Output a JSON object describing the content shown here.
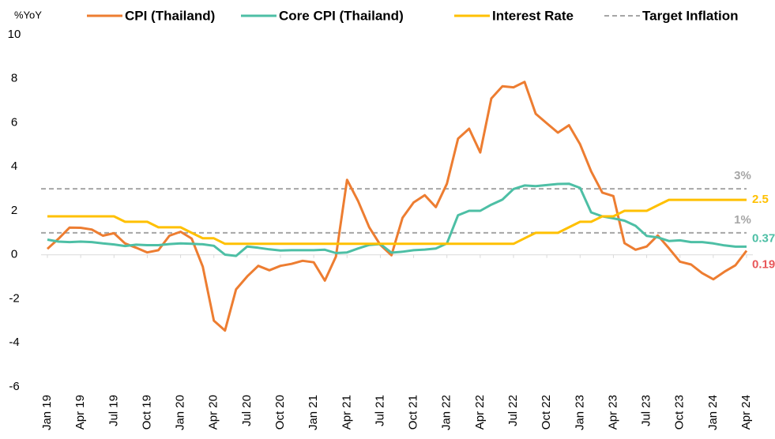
{
  "chart_data": {
    "type": "line",
    "y_label": "%YoY",
    "categories": [
      "Jan 19",
      null,
      null,
      "Apr 19",
      null,
      null,
      "Jul 19",
      null,
      null,
      "Oct 19",
      null,
      null,
      "Jan 20",
      null,
      null,
      "Apr 20",
      null,
      null,
      "Jul 20",
      null,
      null,
      "Oct 20",
      null,
      null,
      "Jan 21",
      null,
      null,
      "Apr 21",
      null,
      null,
      "Jul 21",
      null,
      null,
      "Oct 21",
      null,
      null,
      "Jan 22",
      null,
      null,
      "Apr 22",
      null,
      null,
      "Jul 22",
      null,
      null,
      "Oct 22",
      null,
      null,
      "Jan 23",
      null,
      null,
      "Apr 23",
      null,
      null,
      "Jul 23",
      null,
      null,
      "Oct 23",
      null,
      null,
      "Jan 24",
      null,
      null,
      "Apr 24"
    ],
    "series": [
      {
        "name": "CPI (Thailand)",
        "color": "#ed7d31",
        "label_color": "#e8575a",
        "values": [
          0.27,
          0.73,
          1.24,
          1.23,
          1.15,
          0.87,
          0.98,
          0.52,
          0.32,
          0.11,
          0.21,
          0.87,
          1.05,
          0.74,
          -0.54,
          -2.99,
          -3.44,
          -1.57,
          -0.98,
          -0.5,
          -0.7,
          -0.5,
          -0.41,
          -0.27,
          -0.34,
          -1.17,
          -0.08,
          3.41,
          2.44,
          1.25,
          0.45,
          -0.02,
          1.68,
          2.38,
          2.71,
          2.17,
          3.23,
          5.28,
          5.73,
          4.65,
          7.1,
          7.66,
          7.61,
          7.86,
          6.41,
          5.98,
          5.55,
          5.89,
          5.02,
          3.79,
          2.83,
          2.67,
          0.53,
          0.23,
          0.38,
          0.88,
          0.3,
          -0.31,
          -0.44,
          -0.83,
          -1.11,
          -0.77,
          -0.47,
          0.19
        ]
      },
      {
        "name": "Core CPI (Thailand)",
        "color": "#4dbfa5",
        "label_color": "#4dbfa5",
        "values": [
          0.69,
          0.6,
          0.58,
          0.6,
          0.58,
          0.52,
          0.47,
          0.4,
          0.46,
          0.44,
          0.44,
          0.49,
          0.52,
          0.5,
          0.48,
          0.41,
          0.01,
          -0.05,
          0.38,
          0.32,
          0.25,
          0.2,
          0.21,
          0.21,
          0.21,
          0.23,
          0.08,
          0.11,
          0.29,
          0.45,
          0.49,
          0.1,
          0.14,
          0.21,
          0.24,
          0.29,
          0.52,
          1.8,
          2.0,
          2.0,
          2.28,
          2.51,
          2.99,
          3.15,
          3.12,
          3.17,
          3.22,
          3.23,
          3.04,
          1.93,
          1.75,
          1.66,
          1.55,
          1.32,
          0.86,
          0.79,
          0.63,
          0.66,
          0.58,
          0.58,
          0.52,
          0.43,
          0.37,
          0.37
        ]
      },
      {
        "name": "Interest Rate",
        "color": "#ffc000",
        "label_color": "#ffc000",
        "values": [
          1.75,
          1.75,
          1.75,
          1.75,
          1.75,
          1.75,
          1.75,
          1.5,
          1.5,
          1.5,
          1.25,
          1.25,
          1.25,
          1.0,
          0.75,
          0.75,
          0.5,
          0.5,
          0.5,
          0.5,
          0.5,
          0.5,
          0.5,
          0.5,
          0.5,
          0.5,
          0.5,
          0.5,
          0.5,
          0.5,
          0.5,
          0.5,
          0.5,
          0.5,
          0.5,
          0.5,
          0.5,
          0.5,
          0.5,
          0.5,
          0.5,
          0.5,
          0.5,
          0.75,
          1.0,
          1.0,
          1.0,
          1.25,
          1.5,
          1.5,
          1.75,
          1.75,
          2.0,
          2.0,
          2.0,
          2.25,
          2.5,
          2.5,
          2.5,
          2.5,
          2.5,
          2.5,
          2.5,
          2.5
        ]
      }
    ],
    "target": {
      "name": "Target Inflation",
      "color": "#a6a6a6",
      "values": [
        3,
        1
      ],
      "labels": [
        "3%",
        "1%"
      ]
    },
    "ylim": [
      -6,
      10
    ],
    "yticks": [
      -6,
      -4,
      -2,
      0,
      2,
      4,
      6,
      8,
      10
    ]
  }
}
